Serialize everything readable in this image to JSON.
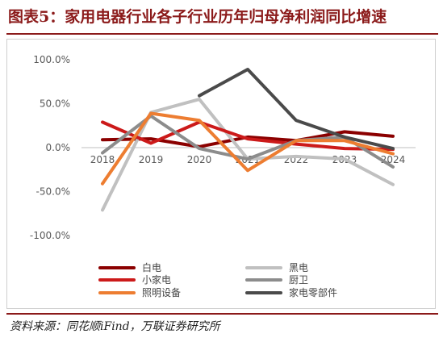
{
  "header": {
    "title": "图表5：家用电器行业各子行业历年归母净利润同比增速"
  },
  "footer": {
    "source": "资料来源：同花顺iFind，万联证券研究所"
  },
  "chart_data": {
    "type": "line",
    "title": "图表5：家用电器行业各子行业历年归母净利润同比增速",
    "xlabel": "",
    "ylabel": "",
    "x": [
      "2018",
      "2019",
      "2020",
      "2021",
      "2022",
      "2023",
      "2024"
    ],
    "ylim": [
      -100,
      100
    ],
    "yticks": [
      "100.0%",
      "50.0%",
      "0.0%",
      "-50.0%",
      "-100.0%"
    ],
    "grid": false,
    "legend_position": "bottom",
    "series": [
      {
        "name": "白电",
        "color": "#8b0000",
        "values": [
          9,
          10,
          1,
          12,
          8,
          18,
          13
        ]
      },
      {
        "name": "黑电",
        "color": "#c0c0c0",
        "values": [
          -71,
          40,
          55,
          -13,
          -10,
          -13,
          -42
        ]
      },
      {
        "name": "小家电",
        "color": "#cc1a1a",
        "values": [
          29,
          5,
          29,
          10,
          4,
          -1,
          -2
        ]
      },
      {
        "name": "厨卫",
        "color": "#8c8c8c",
        "values": [
          -6,
          36,
          -1,
          -13,
          8,
          12,
          -22
        ]
      },
      {
        "name": "照明设备",
        "color": "#ed7d31",
        "values": [
          -41,
          39,
          31,
          -26,
          8,
          8,
          -7
        ]
      },
      {
        "name": "家电零部件",
        "color": "#4a4a4a",
        "values": [
          null,
          null,
          59,
          89,
          31,
          12,
          -1
        ]
      }
    ]
  }
}
